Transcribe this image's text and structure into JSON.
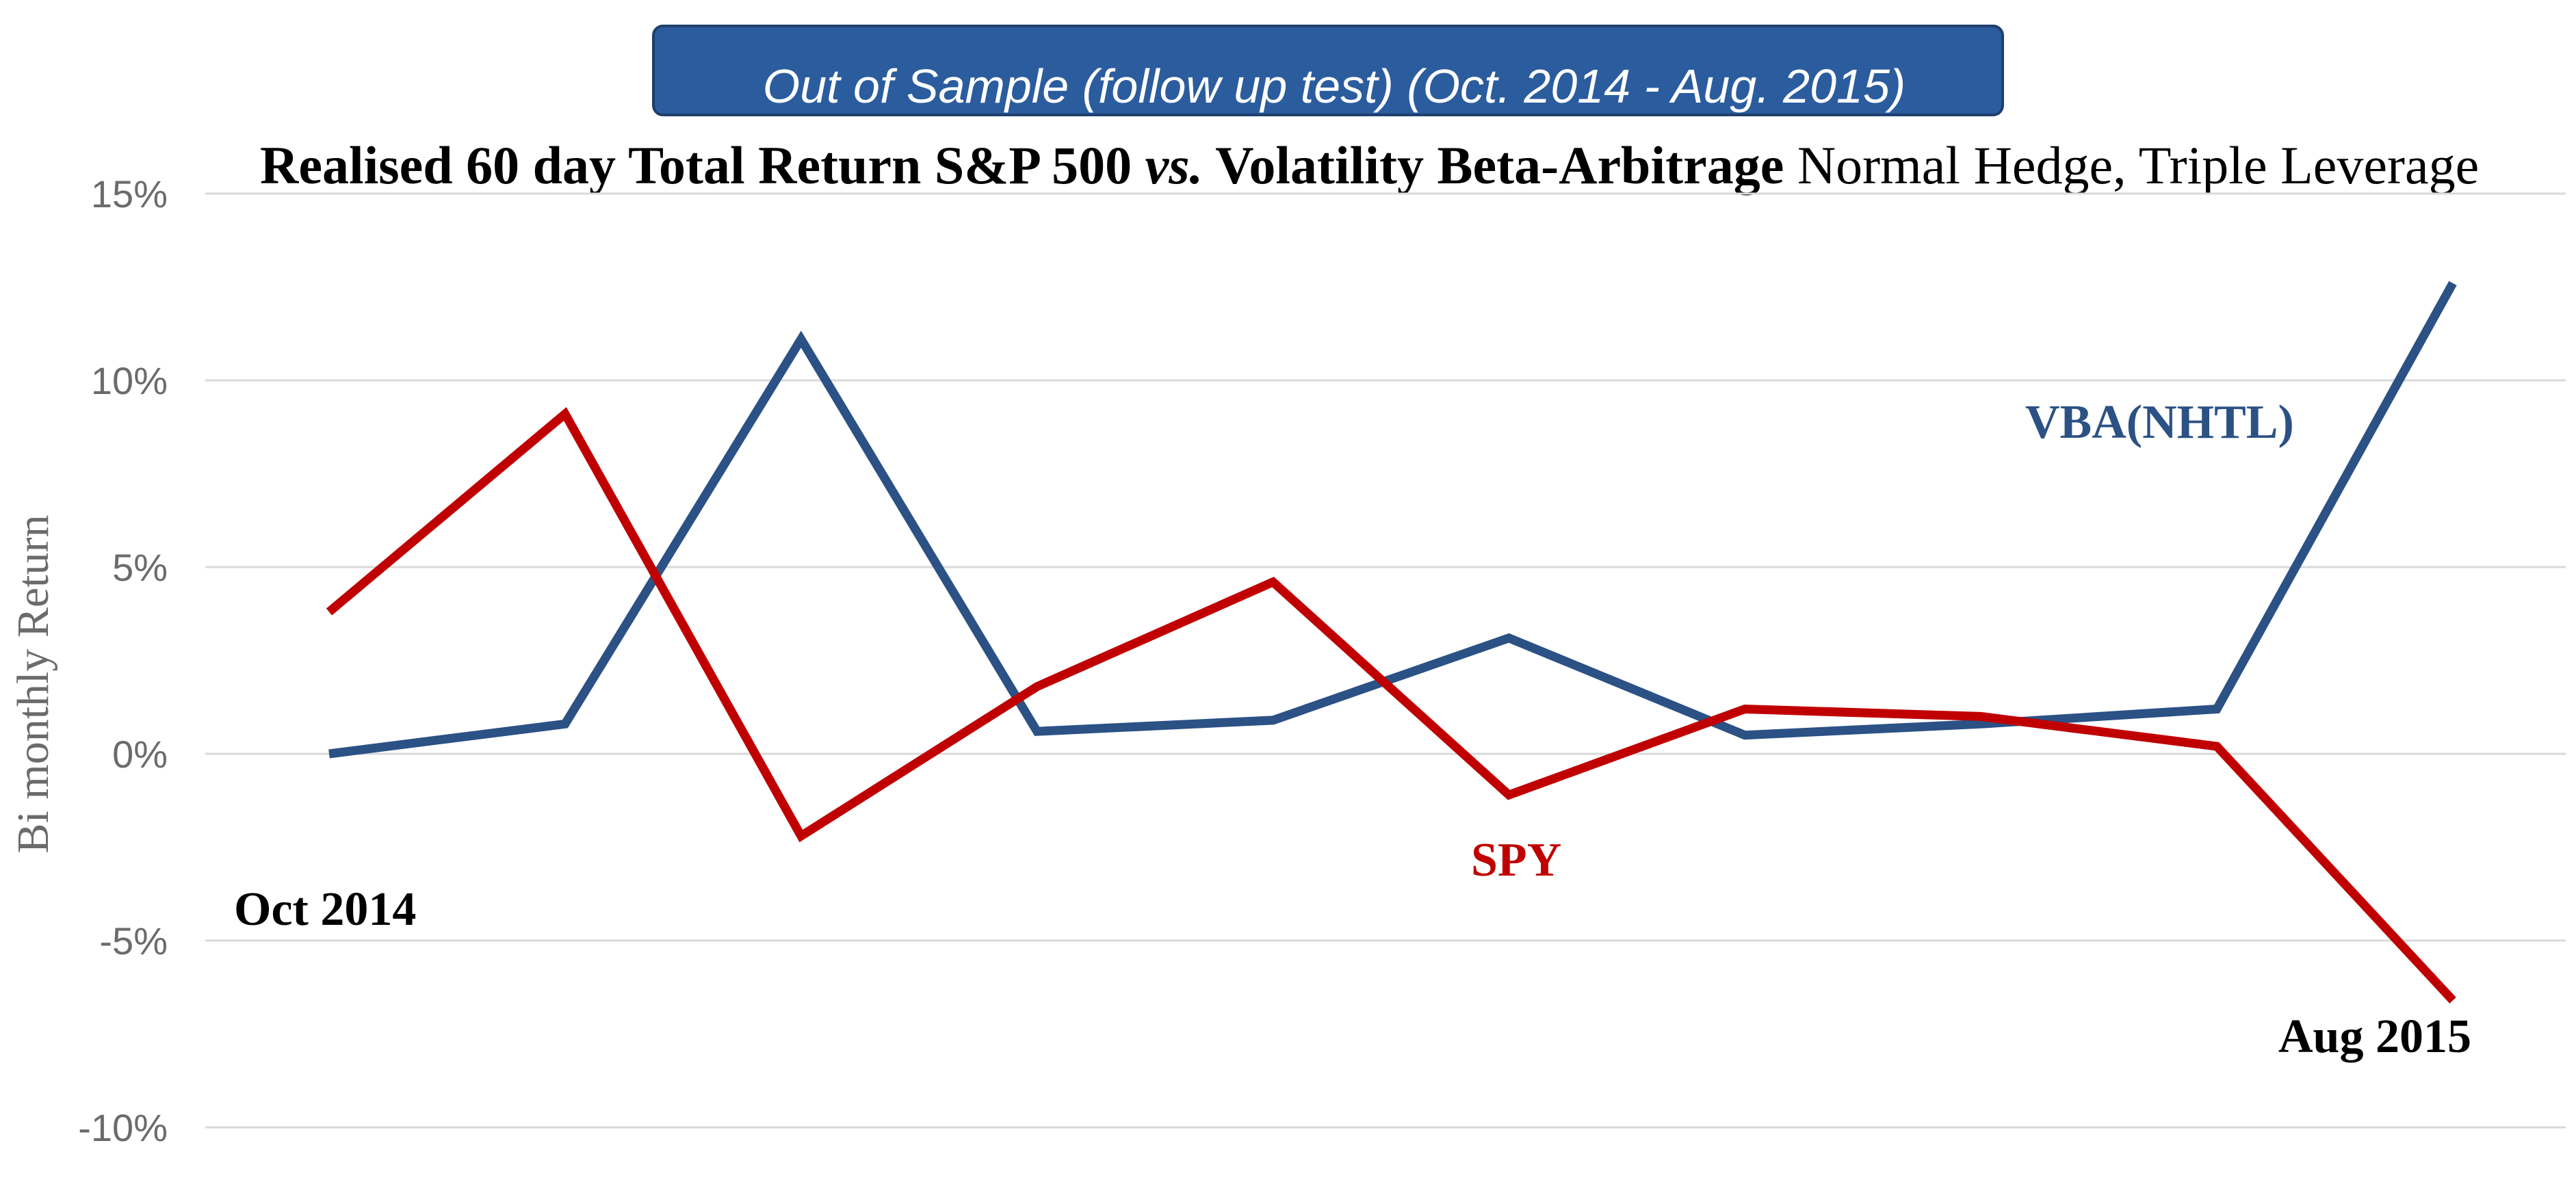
{
  "banner": {
    "text": "Out of Sample (follow up test) (Oct. 2014 - Aug. 2015)",
    "fill": "#2B5C9E"
  },
  "title": {
    "bold_part": "Realised 60 day Total Return S&P 500 ",
    "vs": "vs.",
    "bold_part2": " Volatility Beta-Arbitrage",
    "normal_part": " Normal Hedge, Triple Leverage"
  },
  "chart_data": {
    "type": "line",
    "title": "Realised 60 day Total Return S&P 500 vs. Volatility Beta-Arbitrage Normal Hedge, Triple Leverage",
    "ylabel": "Bi monthly Return",
    "xlabel": "",
    "ylim": [
      -0.1,
      0.15
    ],
    "yticks": [
      0.15,
      0.1,
      0.05,
      0.0,
      -0.05,
      -0.1
    ],
    "ytick_labels": [
      "15%",
      "10%",
      "5%",
      "0%",
      "-5%",
      "-10%"
    ],
    "grid": true,
    "x": [
      1,
      2,
      3,
      4,
      5,
      6,
      7,
      8,
      9,
      10
    ],
    "series": [
      {
        "name": "VBA(NHTL)",
        "color": "#2B5185",
        "values": [
          0.0,
          0.008,
          0.111,
          0.006,
          0.009,
          0.031,
          0.005,
          0.008,
          0.012,
          0.126
        ]
      },
      {
        "name": "SPY",
        "color": "#C00000",
        "values": [
          0.038,
          0.091,
          -0.022,
          0.018,
          0.046,
          -0.011,
          0.012,
          0.01,
          0.002,
          -0.066
        ]
      }
    ],
    "annotations": [
      {
        "text": "Oct 2014",
        "color": "#000000"
      },
      {
        "text": "Aug 2015",
        "color": "#000000"
      },
      {
        "text": "VBA(NHTL)",
        "color": "#2B5185"
      },
      {
        "text": "SPY",
        "color": "#C00000"
      }
    ]
  }
}
